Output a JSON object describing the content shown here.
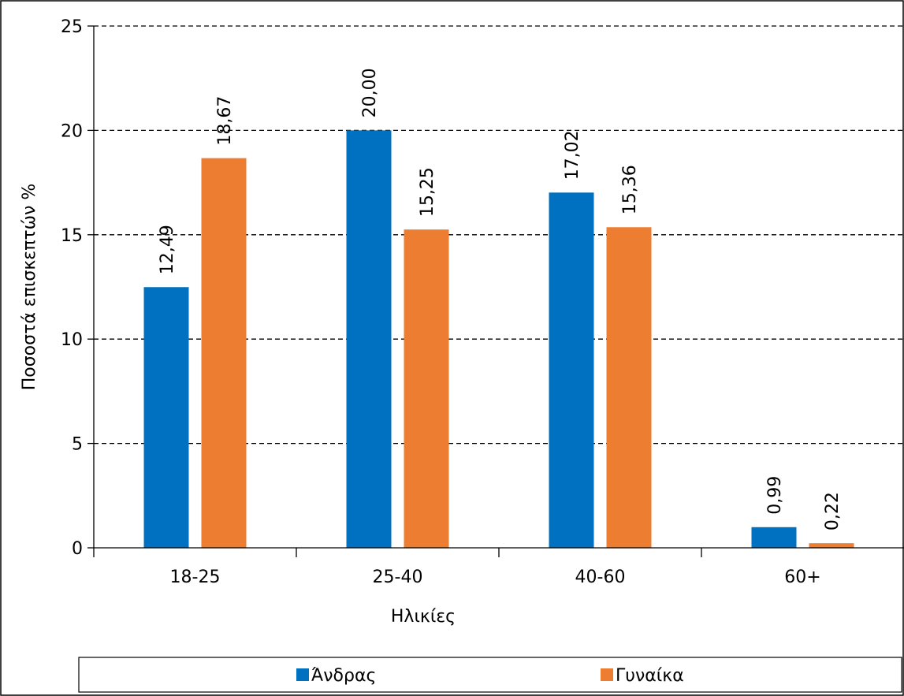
{
  "chart_data": {
    "type": "bar",
    "categories": [
      "18-25",
      "25-40",
      "40-60",
      "60+"
    ],
    "series": [
      {
        "name": "Άνδρας",
        "values": [
          12.49,
          20.0,
          17.02,
          0.99
        ],
        "labels": [
          "12,49",
          "20,00",
          "17,02",
          "0,99"
        ],
        "color": "#0070C0"
      },
      {
        "name": "Γυναίκα",
        "values": [
          18.67,
          15.25,
          15.36,
          0.22
        ],
        "labels": [
          "18,67",
          "15,25",
          "15,36",
          "0,22"
        ],
        "color": "#ED7D31"
      }
    ],
    "xlabel": "Ηλικίες",
    "ylabel": "Ποσοστά επισκεπτών %",
    "ylim": [
      0,
      25
    ],
    "yticks": [
      0,
      5,
      10,
      15,
      20,
      25
    ],
    "grid": true,
    "legend": "bottom"
  }
}
